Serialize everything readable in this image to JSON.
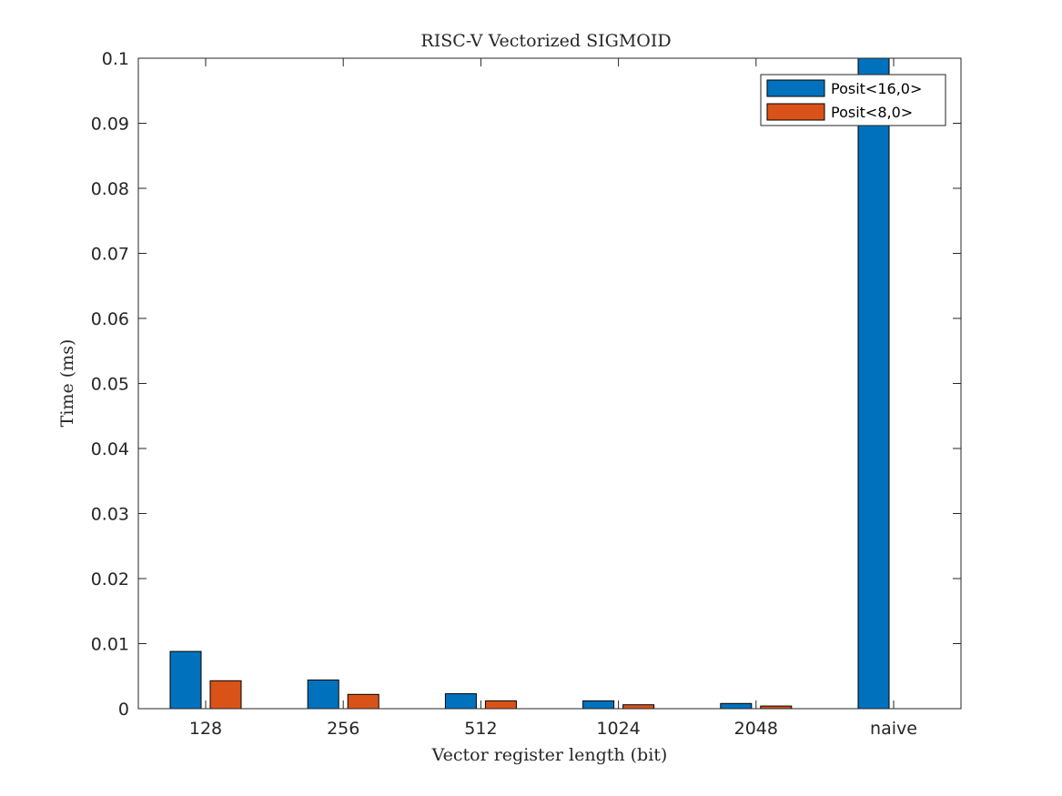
{
  "chart_data": {
    "type": "bar",
    "title": "RISC-V Vectorized SIGMOID",
    "xlabel": "Vector register length (bit)",
    "ylabel": "Time (ms)",
    "categories": [
      "128",
      "256",
      "512",
      "1024",
      "2048",
      "naive"
    ],
    "ylim": [
      0,
      0.1
    ],
    "yticks": [
      0,
      0.01,
      0.02,
      0.03,
      0.04,
      0.05,
      0.06,
      0.07,
      0.08,
      0.09,
      0.1
    ],
    "ytick_labels": [
      "0",
      "0.01",
      "0.02",
      "0.03",
      "0.04",
      "0.05",
      "0.06",
      "0.07",
      "0.08",
      "0.09",
      "0.1"
    ],
    "grid": false,
    "legend_position": "top-right",
    "series": [
      {
        "name": "Posit<16,0>",
        "color": "#0072BD",
        "values": [
          0.0088,
          0.0044,
          0.0023,
          0.0012,
          0.0008,
          0.1
        ]
      },
      {
        "name": "Posit<8,0>",
        "color": "#D95319",
        "values": [
          0.0043,
          0.0022,
          0.0012,
          0.0006,
          0.0004,
          0
        ]
      }
    ]
  }
}
